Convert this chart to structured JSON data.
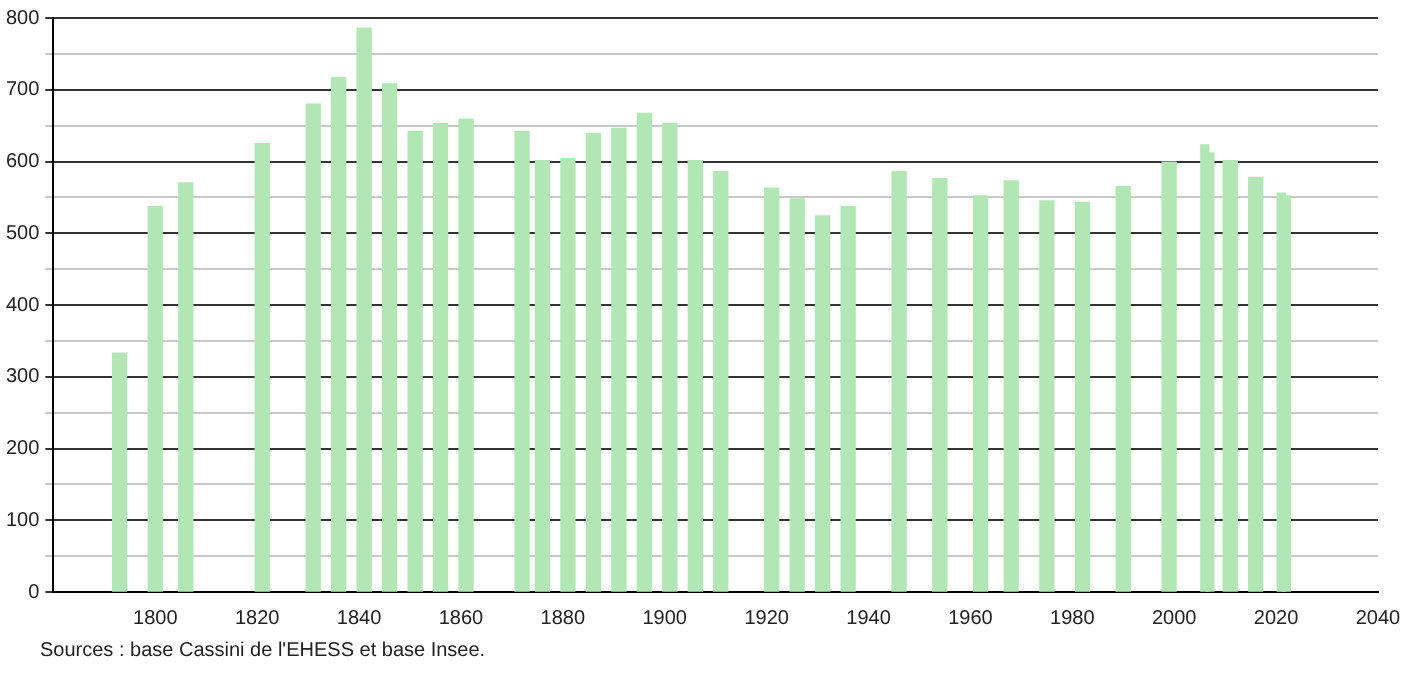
{
  "chart_data": {
    "type": "bar",
    "x": [
      1793,
      1800,
      1806,
      1821,
      1831,
      1836,
      1841,
      1846,
      1851,
      1856,
      1861,
      1872,
      1876,
      1881,
      1886,
      1891,
      1896,
      1901,
      1906,
      1911,
      1921,
      1926,
      1931,
      1936,
      1946,
      1954,
      1962,
      1968,
      1975,
      1982,
      1990,
      1999,
      2006,
      2007,
      2011,
      2016,
      2021,
      2022
    ],
    "values": [
      333,
      537,
      570,
      625,
      680,
      717,
      786,
      708,
      642,
      653,
      659,
      642,
      601,
      604,
      639,
      646,
      667,
      653,
      601,
      586,
      563,
      548,
      524,
      537,
      586,
      576,
      552,
      573,
      545,
      543,
      565,
      599,
      623,
      612,
      601,
      578,
      556,
      552
    ],
    "color": "#b3e6b5",
    "xlim": [
      1780,
      2040
    ],
    "xticks": [
      1800,
      1820,
      1840,
      1860,
      1880,
      1900,
      1920,
      1940,
      1960,
      1980,
      2000,
      2020,
      2040
    ],
    "ylim": [
      0,
      800
    ],
    "yticks": [
      0,
      {
        "value": 50,
        "label": null
      },
      100,
      {
        "value": 150,
        "label": null
      },
      200,
      {
        "value": 250,
        "label": null
      },
      300,
      {
        "value": 350,
        "label": null
      },
      400,
      {
        "value": 450,
        "label": null
      },
      500,
      {
        "value": 550,
        "label": null
      },
      600,
      {
        "value": 650,
        "label": null
      },
      700,
      {
        "value": 750,
        "label": null
      },
      800
    ],
    "grid": "y",
    "annotations": [
      "Sources : base Cassini de l'EHESS et base Insee."
    ]
  }
}
